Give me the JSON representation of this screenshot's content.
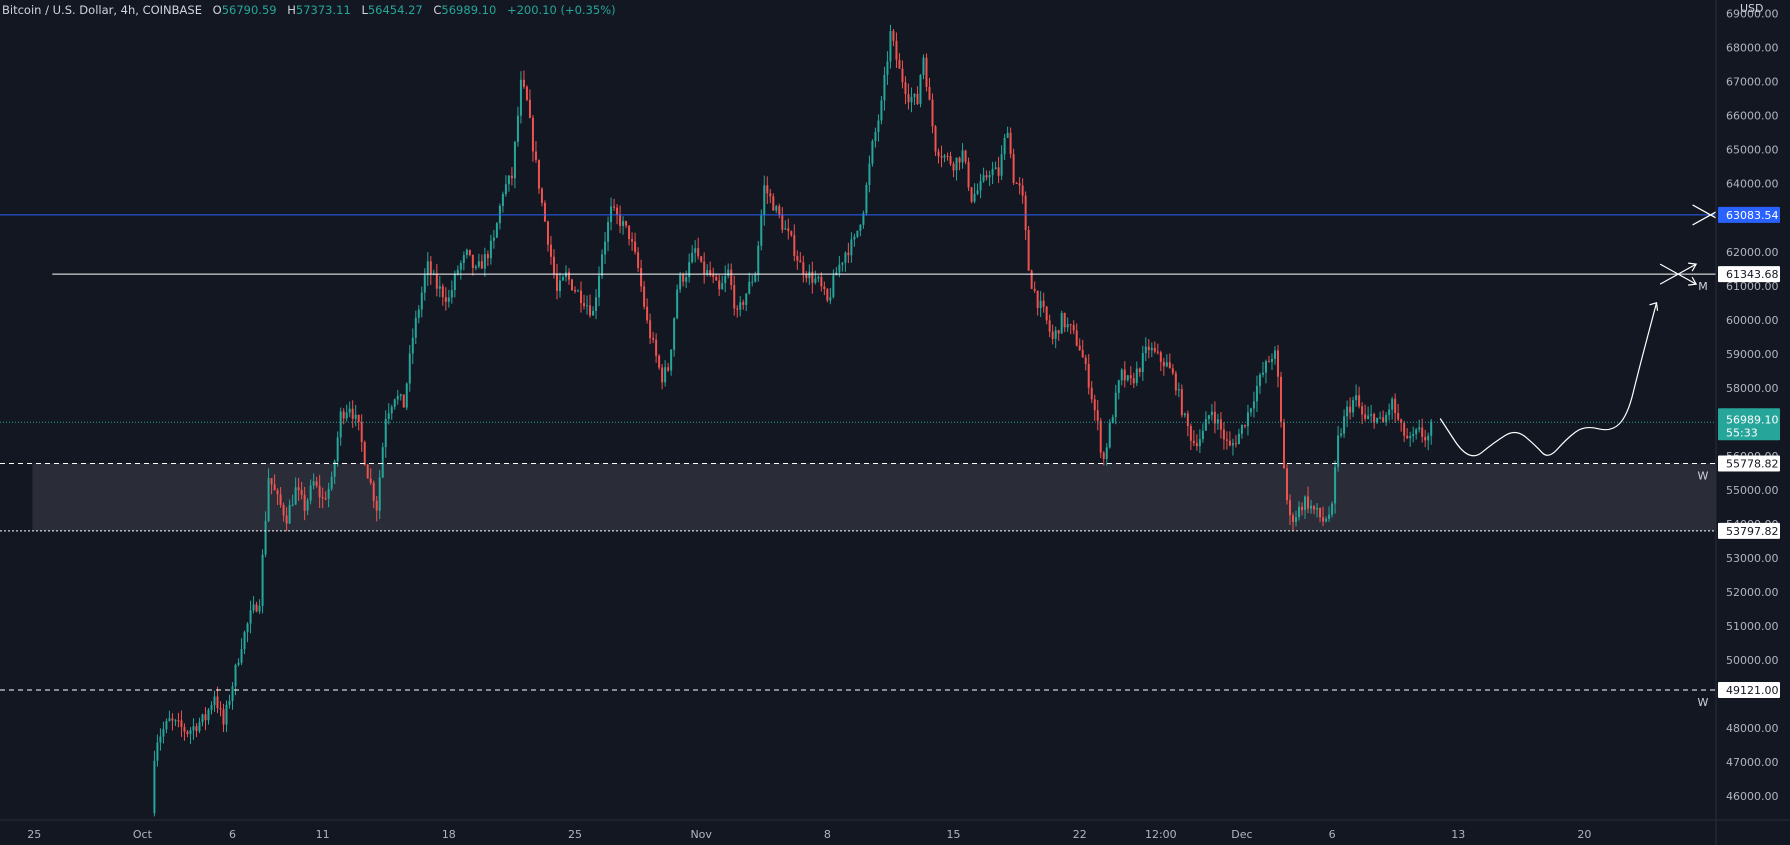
{
  "header": {
    "symbol": "Bitcoin / U.S. Dollar, 4h, COINBASE",
    "open_label": "O",
    "open": "56790.59",
    "high_label": "H",
    "high": "57373.11",
    "low_label": "L",
    "low": "56454.27",
    "close_label": "C",
    "close": "56989.10",
    "change": "+200.10 (+0.35%)"
  },
  "currency": "USD",
  "colors": {
    "background": "#131722",
    "up": "#26a69a",
    "down": "#ef5350",
    "blue_line": "#2962ff",
    "zone": "#2a2d37",
    "text": "#d1d4dc"
  },
  "chart_data": {
    "type": "candlestick",
    "timeframe": "4h",
    "ylim": [
      45300,
      69400
    ],
    "y_ticks": [
      46000,
      47000,
      48000,
      49000,
      50000,
      51000,
      52000,
      53000,
      54000,
      55000,
      56000,
      57000,
      58000,
      59000,
      60000,
      61000,
      62000,
      63000,
      64000,
      65000,
      66000,
      67000,
      68000,
      69000
    ],
    "x_ticks": [
      {
        "label": "25",
        "day": -6
      },
      {
        "label": "Oct",
        "day": 0
      },
      {
        "label": "6",
        "day": 5
      },
      {
        "label": "11",
        "day": 10
      },
      {
        "label": "18",
        "day": 17
      },
      {
        "label": "25",
        "day": 24
      },
      {
        "label": "Nov",
        "day": 31
      },
      {
        "label": "8",
        "day": 38
      },
      {
        "label": "15",
        "day": 45
      },
      {
        "label": "22",
        "day": 52
      },
      {
        "label": "12:00",
        "day": 56.5
      },
      {
        "label": "Dec",
        "day": 61
      },
      {
        "label": "6",
        "day": 66
      },
      {
        "label": "13",
        "day": 73
      },
      {
        "label": "20",
        "day": 80
      }
    ],
    "x_range_days": [
      -7.9,
      87.3
    ],
    "price_path": [
      [
        0.5,
        45500
      ],
      [
        0.7,
        47600
      ],
      [
        1.5,
        48200
      ],
      [
        2.5,
        47900
      ],
      [
        3.5,
        48300
      ],
      [
        4.0,
        49000
      ],
      [
        4.5,
        48100
      ],
      [
        5.0,
        49300
      ],
      [
        5.5,
        50500
      ],
      [
        6.0,
        51300
      ],
      [
        6.5,
        51800
      ],
      [
        7.0,
        55400
      ],
      [
        7.5,
        54700
      ],
      [
        8.0,
        54200
      ],
      [
        8.5,
        55000
      ],
      [
        9.0,
        54500
      ],
      [
        9.5,
        55200
      ],
      [
        10.0,
        54700
      ],
      [
        10.5,
        55200
      ],
      [
        11.0,
        57200
      ],
      [
        11.5,
        57500
      ],
      [
        12.0,
        56800
      ],
      [
        12.5,
        55500
      ],
      [
        13.0,
        54500
      ],
      [
        13.5,
        57200
      ],
      [
        14.0,
        57800
      ],
      [
        14.5,
        57500
      ],
      [
        15.0,
        59500
      ],
      [
        15.5,
        60800
      ],
      [
        15.8,
        61600
      ],
      [
        16.3,
        61000
      ],
      [
        17.0,
        60600
      ],
      [
        17.5,
        61500
      ],
      [
        18.0,
        61900
      ],
      [
        18.5,
        61400
      ],
      [
        19.0,
        61800
      ],
      [
        19.5,
        62300
      ],
      [
        20.0,
        63800
      ],
      [
        20.5,
        64200
      ],
      [
        21.0,
        66900
      ],
      [
        21.3,
        66500
      ],
      [
        21.7,
        65000
      ],
      [
        22.2,
        63300
      ],
      [
        22.5,
        62400
      ],
      [
        23.0,
        60800
      ],
      [
        23.5,
        61300
      ],
      [
        24.0,
        60900
      ],
      [
        24.5,
        60600
      ],
      [
        25.0,
        60200
      ],
      [
        25.5,
        62000
      ],
      [
        26.0,
        63200
      ],
      [
        26.5,
        62900
      ],
      [
        27.0,
        62500
      ],
      [
        27.5,
        61500
      ],
      [
        28.0,
        59900
      ],
      [
        28.5,
        58900
      ],
      [
        28.8,
        58300
      ],
      [
        29.2,
        58600
      ],
      [
        29.7,
        61100
      ],
      [
        30.2,
        61400
      ],
      [
        30.7,
        62100
      ],
      [
        31.0,
        61500
      ],
      [
        31.5,
        61300
      ],
      [
        32.0,
        60800
      ],
      [
        32.5,
        61400
      ],
      [
        33.0,
        60100
      ],
      [
        33.5,
        60800
      ],
      [
        34.0,
        61400
      ],
      [
        34.5,
        63900
      ],
      [
        35.0,
        63400
      ],
      [
        35.5,
        62800
      ],
      [
        36.0,
        62300
      ],
      [
        36.5,
        61600
      ],
      [
        37.0,
        61300
      ],
      [
        37.5,
        61100
      ],
      [
        38.0,
        60500
      ],
      [
        38.5,
        61400
      ],
      [
        39.0,
        62000
      ],
      [
        39.5,
        62300
      ],
      [
        40.0,
        63300
      ],
      [
        40.5,
        65100
      ],
      [
        41.0,
        66300
      ],
      [
        41.5,
        68400
      ],
      [
        42.0,
        67300
      ],
      [
        42.5,
        66600
      ],
      [
        43.0,
        66400
      ],
      [
        43.3,
        67900
      ],
      [
        43.7,
        66200
      ],
      [
        44.0,
        65100
      ],
      [
        44.5,
        64800
      ],
      [
        45.0,
        64600
      ],
      [
        45.5,
        64900
      ],
      [
        46.0,
        63600
      ],
      [
        46.5,
        63900
      ],
      [
        47.0,
        64400
      ],
      [
        47.5,
        64300
      ],
      [
        48.0,
        65700
      ],
      [
        48.3,
        64200
      ],
      [
        48.8,
        63700
      ],
      [
        49.2,
        61300
      ],
      [
        49.7,
        60500
      ],
      [
        50.0,
        60200
      ],
      [
        50.5,
        59400
      ],
      [
        51.0,
        60000
      ],
      [
        51.5,
        59700
      ],
      [
        52.0,
        59200
      ],
      [
        52.5,
        58200
      ],
      [
        53.0,
        56900
      ],
      [
        53.3,
        55800
      ],
      [
        53.8,
        57200
      ],
      [
        54.3,
        58400
      ],
      [
        54.8,
        58100
      ],
      [
        55.3,
        58600
      ],
      [
        55.8,
        59200
      ],
      [
        56.3,
        58900
      ],
      [
        56.8,
        58700
      ],
      [
        57.3,
        58200
      ],
      [
        57.8,
        57100
      ],
      [
        58.3,
        56400
      ],
      [
        58.8,
        56600
      ],
      [
        59.3,
        57400
      ],
      [
        59.8,
        56800
      ],
      [
        60.3,
        56200
      ],
      [
        60.8,
        56600
      ],
      [
        61.3,
        57200
      ],
      [
        61.8,
        58000
      ],
      [
        62.3,
        58600
      ],
      [
        62.8,
        59100
      ],
      [
        63.0,
        58200
      ],
      [
        63.3,
        55900
      ],
      [
        63.6,
        54100
      ],
      [
        64.0,
        54300
      ],
      [
        64.5,
        54700
      ],
      [
        65.0,
        54400
      ],
      [
        65.5,
        54100
      ],
      [
        66.0,
        54400
      ],
      [
        66.3,
        56400
      ],
      [
        66.8,
        57300
      ],
      [
        67.3,
        57700
      ],
      [
        67.8,
        57000
      ],
      [
        68.3,
        57200
      ],
      [
        68.8,
        56900
      ],
      [
        69.3,
        57600
      ],
      [
        69.8,
        56800
      ],
      [
        70.3,
        56400
      ],
      [
        70.8,
        56700
      ],
      [
        71.3,
        56500
      ],
      [
        71.6,
        56990
      ]
    ],
    "horizontal_levels": [
      {
        "price": 63083.54,
        "label": "63083.54",
        "style": "solid",
        "color": "#2962ff",
        "from_day": -7.9
      },
      {
        "price": 61343.68,
        "label": "61343.68",
        "style": "solid",
        "color": "#ffffff",
        "from_day": -5.0,
        "tag": "M"
      },
      {
        "price": 55778.82,
        "label": "55778.82",
        "style": "dashed",
        "color": "#ffffff",
        "from_day": -7.9,
        "tag": "W"
      },
      {
        "price": 53797.82,
        "label": "53797.82",
        "style": "dotted",
        "color": "#ffffff",
        "from_day": -7.9
      },
      {
        "price": 49121.0,
        "label": "49121.00",
        "style": "dashed",
        "color": "#ffffff",
        "from_day": -7.9,
        "tag": "W"
      }
    ],
    "zone": {
      "from_day": -6.1,
      "top": 55778.82,
      "bottom": 53797.82
    },
    "current_price": {
      "price": 56989.1,
      "label": "56989.10",
      "countdown": "55:33"
    },
    "projection_path": [
      [
        72.0,
        57100
      ],
      [
        73.6,
        55800
      ],
      [
        75.0,
        56400
      ],
      [
        76.2,
        56800
      ],
      [
        77.3,
        56300
      ],
      [
        78.0,
        55900
      ],
      [
        79.0,
        56500
      ],
      [
        80.0,
        56900
      ],
      [
        81.5,
        56700
      ],
      [
        82.4,
        57200
      ],
      [
        83.0,
        58500
      ],
      [
        84.0,
        60500
      ]
    ],
    "projection_arrow_end": [
      84.0,
      60500
    ],
    "cross_markers": [
      {
        "day": 85.2,
        "price": 61343.68
      },
      {
        "day": 87.0,
        "price": 63083.54
      }
    ]
  }
}
